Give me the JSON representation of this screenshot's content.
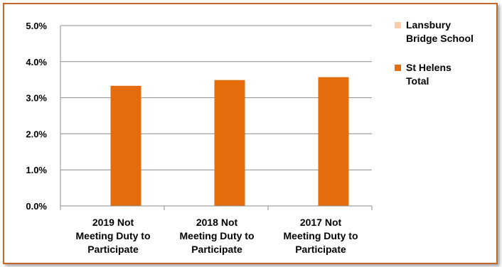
{
  "chart_data": {
    "type": "bar",
    "categories": [
      [
        "2019 Not",
        "Meeting Duty to",
        "Participate"
      ],
      [
        "2018 Not",
        "Meeting Duty to",
        "Participate"
      ],
      [
        "2017 Not",
        "Meeting Duty to",
        "Participate"
      ]
    ],
    "series": [
      {
        "name": [
          "Lansbury",
          "Bridge School"
        ],
        "color": "#f9cba6",
        "values": [
          0,
          0,
          0
        ]
      },
      {
        "name": [
          "St Helens",
          "Total"
        ],
        "color": "#e46c0a",
        "values": [
          3.33,
          3.49,
          3.57
        ]
      }
    ],
    "yticks": [
      "0.0%",
      "1.0%",
      "2.0%",
      "3.0%",
      "4.0%",
      "5.0%"
    ],
    "ylim": [
      0,
      5
    ],
    "grid": true,
    "legend_position": "right",
    "title": "",
    "xlabel": "",
    "ylabel": ""
  }
}
